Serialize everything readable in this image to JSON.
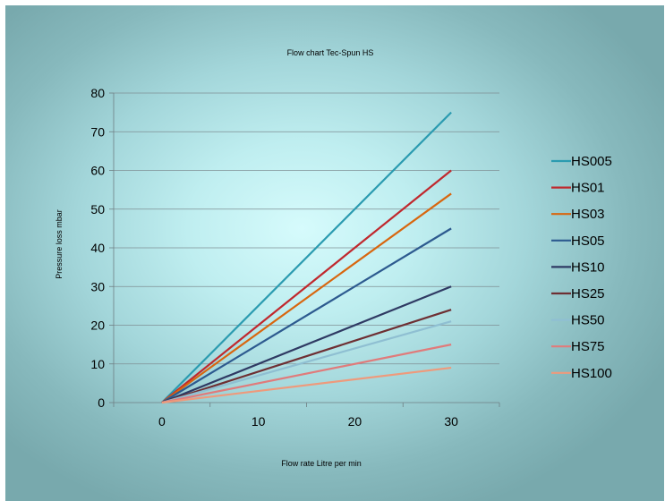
{
  "chart_data": {
    "type": "line",
    "title": "Flow chart Tec-Spun HS",
    "xlabel": "Flow rate Litre per min",
    "ylabel": "Pressure loss mbar",
    "x": [
      0,
      30
    ],
    "xlim": [
      -5,
      35
    ],
    "ylim": [
      0,
      80
    ],
    "xticks": [
      0,
      10,
      20,
      30
    ],
    "yticks": [
      0,
      10,
      20,
      30,
      40,
      50,
      60,
      70,
      80
    ],
    "grid": true,
    "legend_position": "right",
    "series": [
      {
        "name": "HS005",
        "values": [
          0,
          75
        ],
        "color": "#2b9bb0"
      },
      {
        "name": "HS01",
        "values": [
          0,
          60
        ],
        "color": "#c0282d"
      },
      {
        "name": "HS03",
        "values": [
          0,
          54
        ],
        "color": "#d8660f"
      },
      {
        "name": "HS05",
        "values": [
          0,
          45
        ],
        "color": "#2d5a8f"
      },
      {
        "name": "HS10",
        "values": [
          0,
          30
        ],
        "color": "#2f3a63"
      },
      {
        "name": "HS25",
        "values": [
          0,
          24
        ],
        "color": "#6e2f33"
      },
      {
        "name": "HS50",
        "values": [
          0,
          21
        ],
        "color": "#8fbfd2"
      },
      {
        "name": "HS75",
        "values": [
          0,
          15
        ],
        "color": "#e07b7b"
      },
      {
        "name": "HS100",
        "values": [
          0,
          9
        ],
        "color": "#ee9a7c"
      }
    ]
  }
}
